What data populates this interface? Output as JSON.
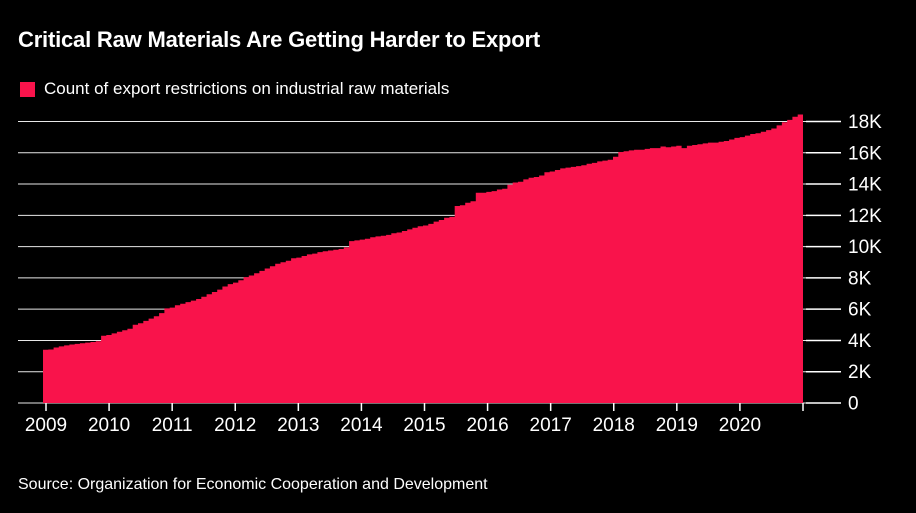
{
  "header": {
    "title": "Critical Raw Materials Are Getting Harder to Export"
  },
  "legend": {
    "label": "Count of export restrictions on industrial raw materials",
    "swatch_color": "#f9134b"
  },
  "source": {
    "text": "Source: Organization for Economic Cooperation and Development"
  },
  "colors": {
    "background": "#000000",
    "text": "#ffffff",
    "grid": "#e8e8e8",
    "axis": "#ffffff",
    "area": "#f9134b"
  },
  "chart_data": {
    "type": "area",
    "style": "step",
    "title": "Critical Raw Materials Are Getting Harder to Export",
    "series_name": "Count of export restrictions on industrial raw materials",
    "x_start_year": 2009,
    "points_per_year": 12,
    "x_range": [
      2009,
      2021
    ],
    "ylim": [
      0,
      18000
    ],
    "ytick_values": [
      0,
      2000,
      4000,
      6000,
      8000,
      10000,
      12000,
      14000,
      16000,
      18000
    ],
    "ytick_labels": [
      "0",
      "2K",
      "4K",
      "6K",
      "8K",
      "10K",
      "12K",
      "14K",
      "16K",
      "18K"
    ],
    "xtick_labels": [
      "2009",
      "2010",
      "2011",
      "2012",
      "2013",
      "2014",
      "2015",
      "2016",
      "2017",
      "2018",
      "2019",
      "2020"
    ],
    "grid": true,
    "legend_position": "top-left",
    "axis_side": "right",
    "values": [
      3400,
      3420,
      3550,
      3620,
      3680,
      3740,
      3780,
      3820,
      3860,
      3900,
      3950,
      4300,
      4350,
      4450,
      4550,
      4650,
      4750,
      5000,
      5100,
      5250,
      5400,
      5550,
      5750,
      6050,
      6100,
      6250,
      6350,
      6450,
      6550,
      6650,
      6800,
      6950,
      7100,
      7250,
      7450,
      7600,
      7700,
      7850,
      8050,
      8150,
      8300,
      8450,
      8600,
      8750,
      8900,
      9000,
      9100,
      9250,
      9300,
      9400,
      9500,
      9550,
      9650,
      9700,
      9750,
      9800,
      9850,
      9950,
      10350,
      10400,
      10450,
      10500,
      10600,
      10650,
      10700,
      10750,
      10850,
      10900,
      11000,
      11100,
      11200,
      11300,
      11350,
      11450,
      11600,
      11700,
      11850,
      11900,
      12600,
      12650,
      12800,
      12900,
      13450,
      13450,
      13500,
      13550,
      13650,
      13700,
      13950,
      14100,
      14150,
      14300,
      14400,
      14450,
      14550,
      14750,
      14800,
      14900,
      15000,
      15050,
      15100,
      15150,
      15200,
      15300,
      15350,
      15450,
      15500,
      15550,
      15750,
      16050,
      16100,
      16150,
      16200,
      16200,
      16250,
      16300,
      16300,
      16400,
      16350,
      16400,
      16450,
      16300,
      16450,
      16500,
      16550,
      16600,
      16650,
      16650,
      16700,
      16750,
      16850,
      16950,
      17000,
      17100,
      17200,
      17250,
      17350,
      17450,
      17550,
      17750,
      17950,
      18100,
      18300,
      18450
    ]
  }
}
